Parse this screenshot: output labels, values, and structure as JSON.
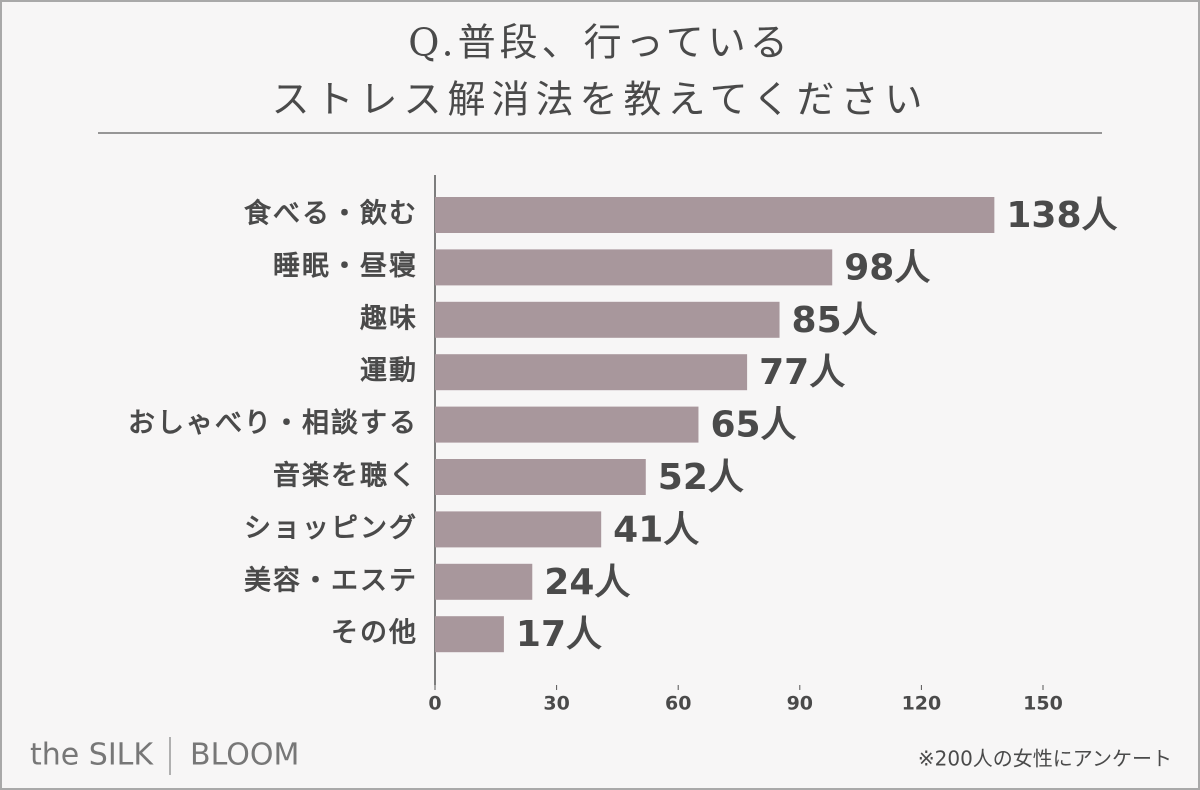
{
  "chart_data": {
    "type": "bar",
    "orientation": "horizontal",
    "title": [
      "Q.普段、行っている",
      "ストレス解消法を教えてください"
    ],
    "categories": [
      "食べる・飲む",
      "睡眠・昼寝",
      "趣味",
      "運動",
      "おしゃべり・相談する",
      "音楽を聴く",
      "ショッピング",
      "美容・エステ",
      "その他"
    ],
    "values": [
      138,
      98,
      85,
      77,
      65,
      52,
      41,
      24,
      17
    ],
    "value_labels": [
      "138人",
      "98人",
      "85人",
      "77人",
      "65人",
      "52人",
      "41人",
      "24人",
      "17人"
    ],
    "color": "#a8979c",
    "xlim": [
      0,
      150
    ],
    "xticks": [
      0,
      30,
      60,
      90,
      120,
      150
    ]
  },
  "footer": {
    "brand": [
      "the SILK",
      "BLOOM"
    ],
    "note": "※200人の女性にアンケート"
  }
}
